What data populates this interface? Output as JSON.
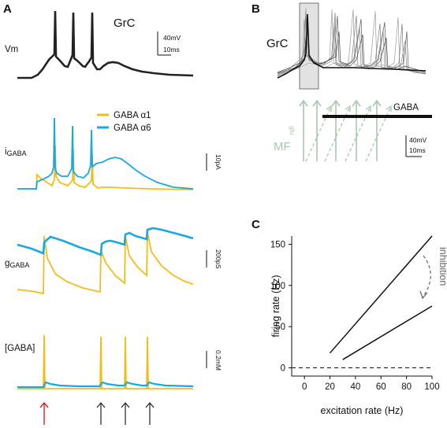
{
  "panels": {
    "a": "A",
    "b": "B",
    "c": "C"
  },
  "panel_a": {
    "cell_label": "GrC",
    "vm_label": "Vm",
    "scale_vm": {
      "voltage": "40mV",
      "time": "10ms"
    },
    "igaba_label_main": "i",
    "igaba_label_sub": "GABA",
    "scale_i": "10pA",
    "ggaba_label_main": "g",
    "ggaba_label_sub": "GABA",
    "scale_g": "200pS",
    "conc_label": "[GABA]",
    "scale_conc": "0.2mM",
    "legend": [
      {
        "label": "GABA α1",
        "color": "#f2bd1c"
      },
      {
        "label": "GABA α6",
        "color": "#1ba8e0"
      }
    ],
    "arrows": {
      "first_color": "#e02020",
      "other_color": "#222222",
      "count": 4
    }
  },
  "panel_b": {
    "cell_label": "GrC",
    "glu_label": "glu",
    "mf_label": "MF",
    "gaba_label": "GABA",
    "scale": {
      "voltage": "40mV",
      "time": "10ms"
    },
    "mf_color": "#a9c7ad"
  },
  "panel_c": {
    "chart_data": {
      "type": "line",
      "xlabel": "excitation rate (Hz)",
      "ylabel": "firing rate (Hz)",
      "xlim": [
        -10,
        100
      ],
      "ylim": [
        -10,
        160
      ],
      "x_ticks": [
        "0",
        "20",
        "40",
        "60",
        "80",
        "100"
      ],
      "y_ticks": [
        "0",
        "50",
        "100",
        "150"
      ],
      "series": [
        {
          "x": [
            20,
            100
          ],
          "y": [
            18,
            160
          ]
        },
        {
          "x": [
            30,
            100
          ],
          "y": [
            10,
            75
          ]
        }
      ],
      "baseline": 0,
      "annotation": "inhibition"
    }
  }
}
